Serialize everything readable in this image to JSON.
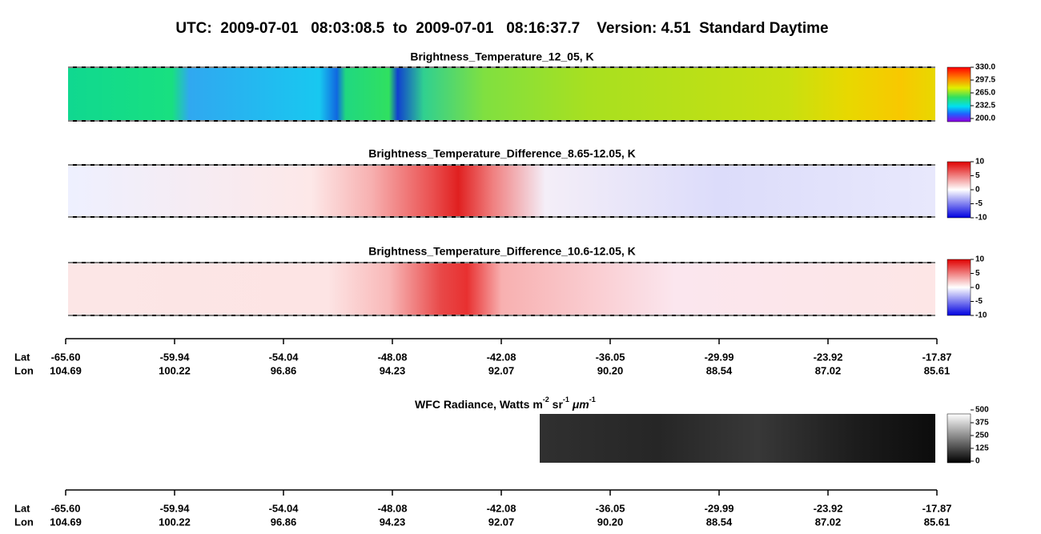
{
  "title": "UTC:  2009-07-01   08:03:08.5  to  2009-07-01   08:16:37.7    Version: 4.51  Standard Daytime",
  "panels": [
    {
      "title": "Brightness_Temperature_12_05, K",
      "colorbar_labels": [
        "330.0",
        "297.5",
        "265.0",
        "232.5",
        "200.0"
      ]
    },
    {
      "title": "Brightness_Temperature_Difference_8.65-12.05, K",
      "colorbar_labels": [
        "10",
        "5",
        "0",
        "-5",
        "-10"
      ]
    },
    {
      "title": "Brightness_Temperature_Difference_10.6-12.05, K",
      "colorbar_labels": [
        "10",
        "5",
        "0",
        "-5",
        "-10"
      ]
    },
    {
      "title_parts": [
        "WFC Radiance, Watts m",
        "-2",
        " sr",
        "-1",
        " μm",
        "-1"
      ],
      "colorbar_labels": [
        "500",
        "375",
        "250",
        "125",
        "0"
      ]
    }
  ],
  "axes": [
    {
      "row_labels": [
        "Lat",
        "Lon"
      ],
      "lat": [
        "-65.60",
        "-59.94",
        "-54.04",
        "-48.08",
        "-42.08",
        "-36.05",
        "-29.99",
        "-23.92",
        "-17.87"
      ],
      "lon": [
        "104.69",
        "100.22",
        "96.86",
        "94.23",
        "92.07",
        "90.20",
        "88.54",
        "87.02",
        "85.61"
      ]
    },
    {
      "row_labels": [
        "Lat",
        "Lon"
      ],
      "lat": [
        "-65.60",
        "-59.94",
        "-54.04",
        "-48.08",
        "-42.08",
        "-36.05",
        "-29.99",
        "-23.92",
        "-17.87"
      ],
      "lon": [
        "104.69",
        "100.22",
        "96.86",
        "94.23",
        "92.07",
        "90.20",
        "88.54",
        "87.02",
        "85.61"
      ]
    }
  ]
}
